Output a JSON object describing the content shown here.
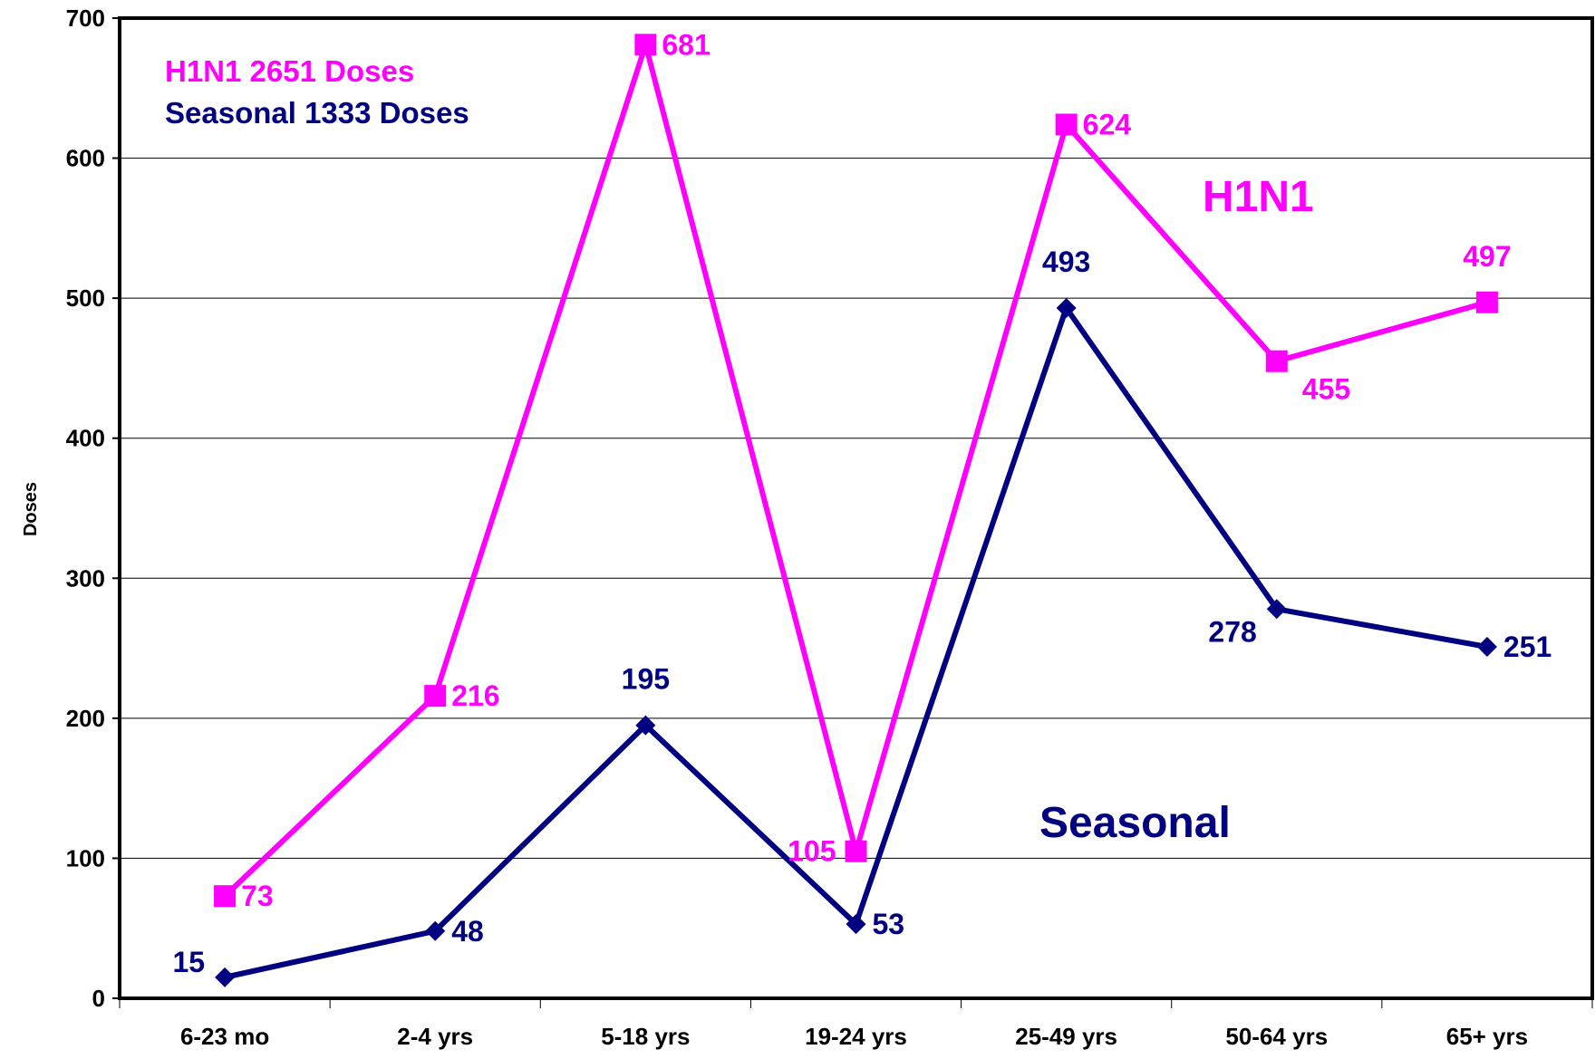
{
  "chart_data": {
    "type": "line",
    "title": "",
    "xlabel": "",
    "ylabel": "Doses",
    "ylim": [
      0,
      700
    ],
    "yticks": [
      "0",
      "100",
      "200",
      "300",
      "400",
      "500",
      "600",
      "700"
    ],
    "grid": true,
    "legend_placement": "top-left",
    "categories": [
      "6-23 mo",
      "2-4 yrs",
      "5-18 yrs",
      "19-24 yrs",
      "25-49 yrs",
      "50-64 yrs",
      "65+ yrs"
    ],
    "series": [
      {
        "key": "h1n1",
        "name": "H1N1",
        "color": "#ff00ff",
        "marker": "square",
        "values": [
          73,
          216,
          681,
          105,
          624,
          455,
          497
        ],
        "labels": [
          "73",
          "216",
          "681",
          "105",
          "624",
          "455",
          "497"
        ]
      },
      {
        "key": "seasonal",
        "name": "Seasonal",
        "color": "#000080",
        "marker": "diamond",
        "values": [
          15,
          48,
          195,
          53,
          493,
          278,
          251
        ],
        "labels": [
          "15",
          "48",
          "195",
          "53",
          "493",
          "278",
          "251"
        ]
      }
    ],
    "legend": [
      "H1N1 2651 Doses",
      "Seasonal 1333 Doses"
    ],
    "annotations": [
      "H1N1",
      "Seasonal"
    ]
  }
}
